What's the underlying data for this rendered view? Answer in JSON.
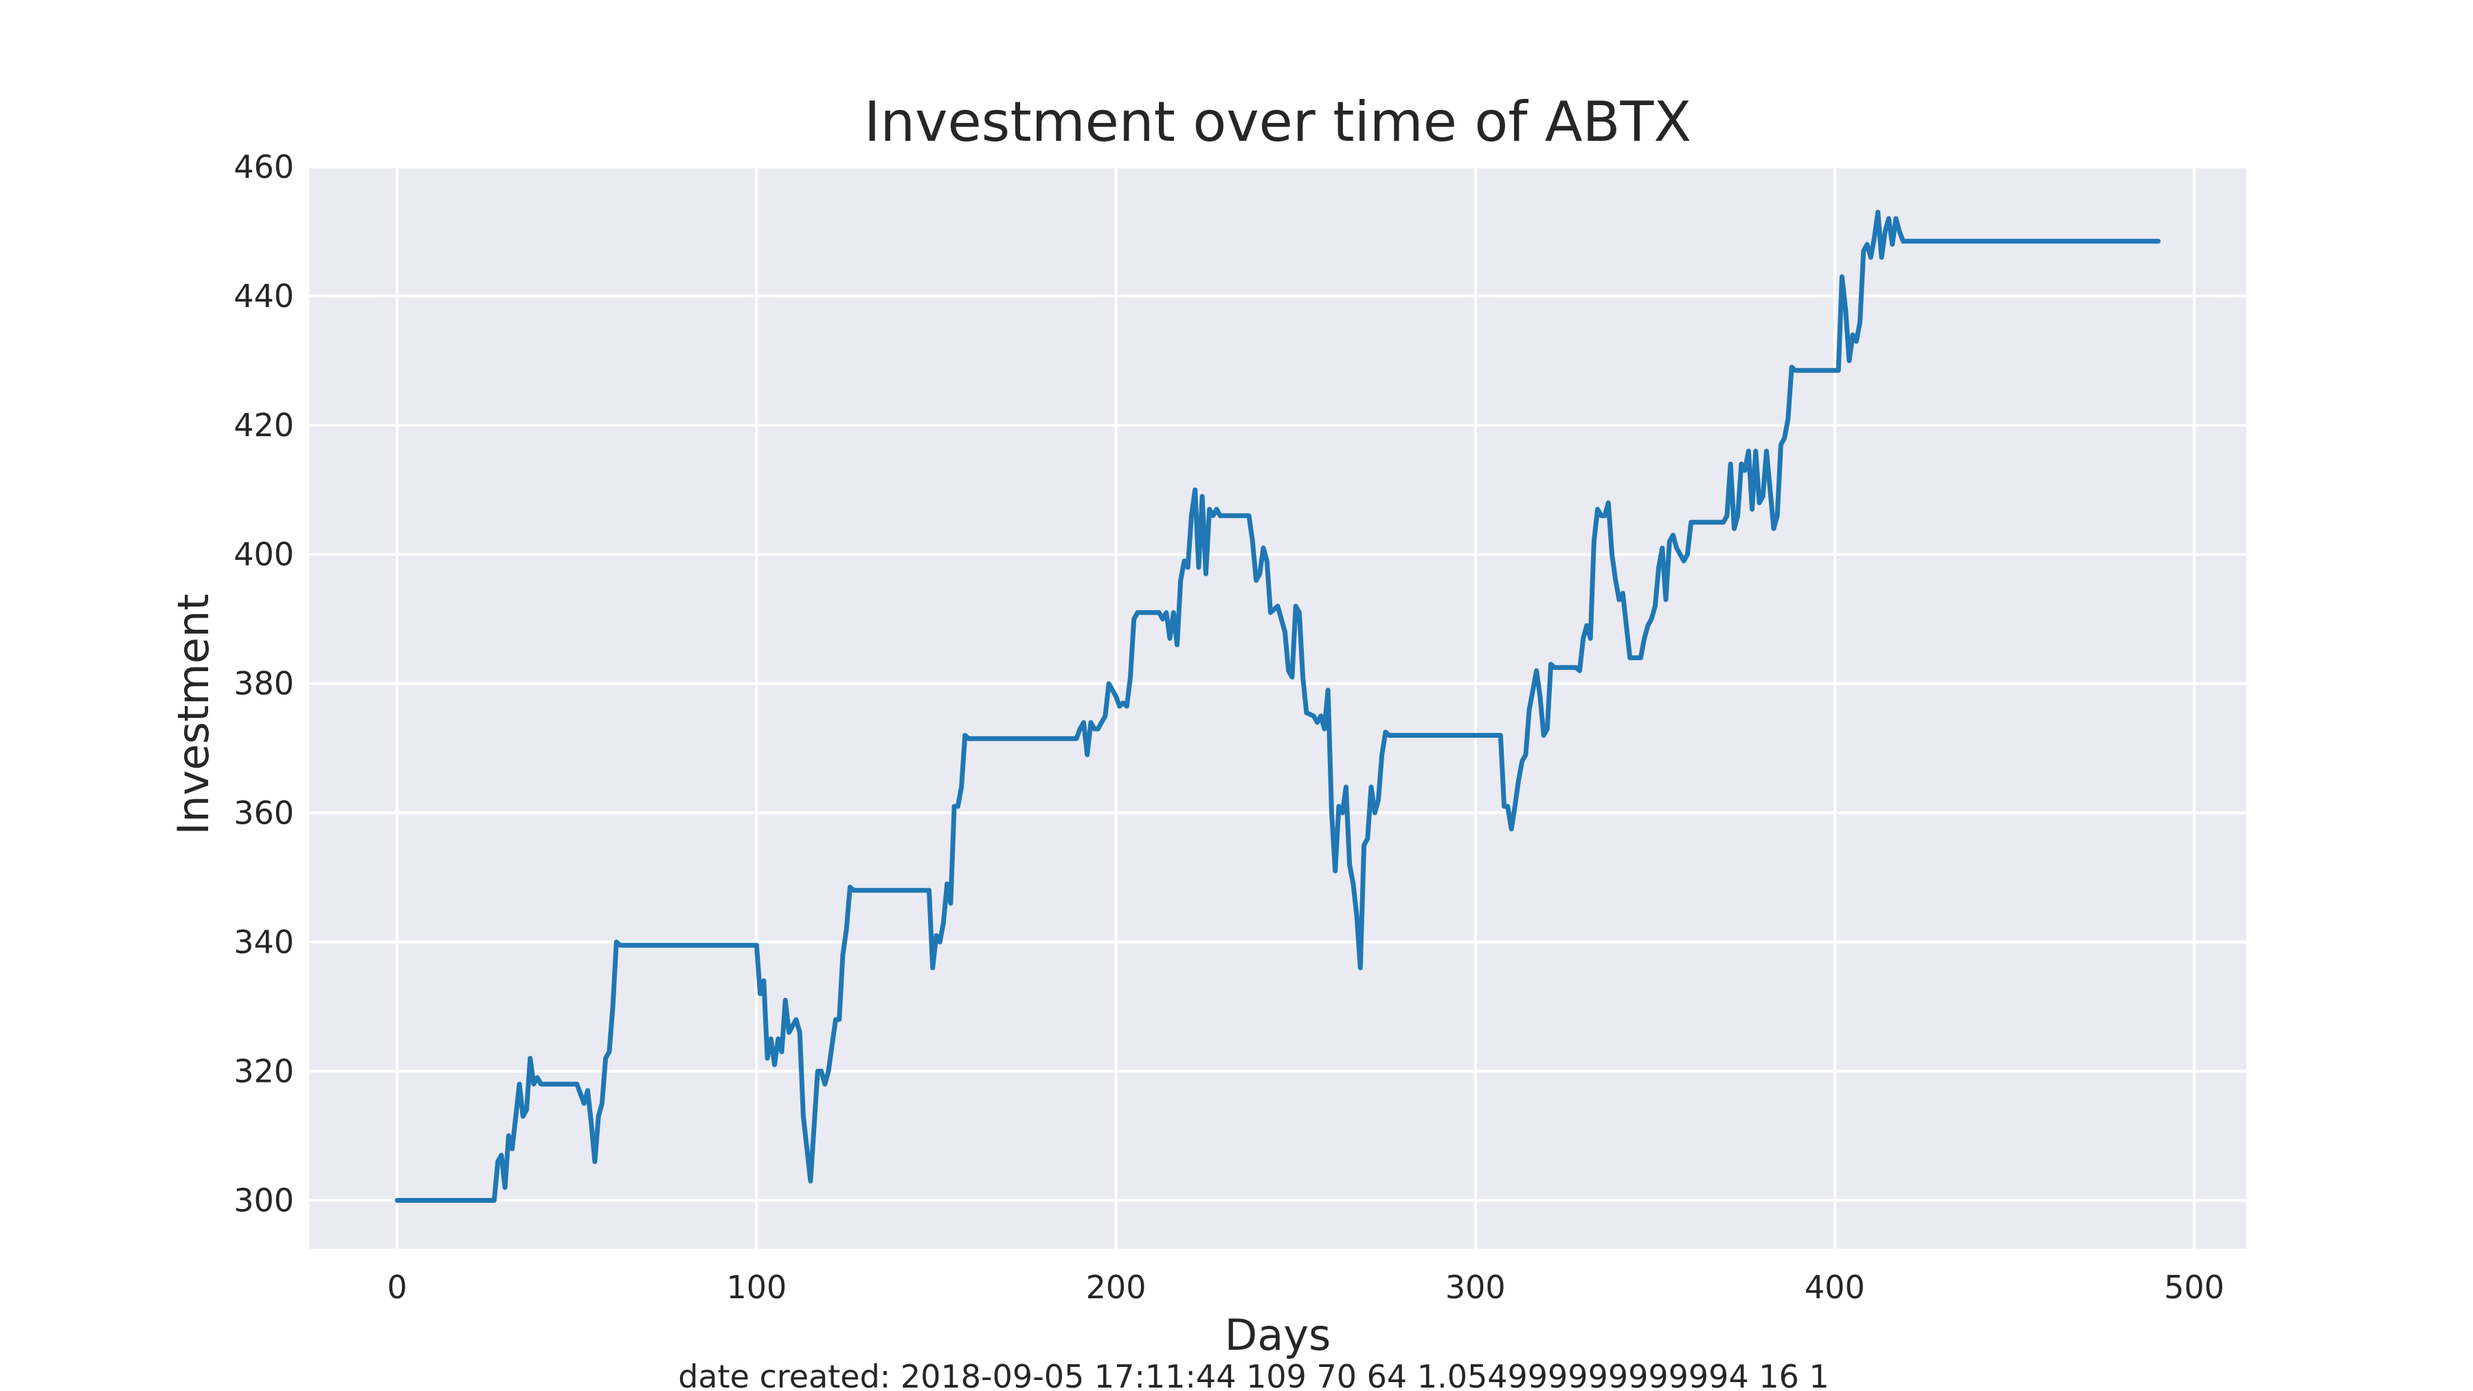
{
  "chart_data": {
    "type": "line",
    "title": "Investment over time of ABTX",
    "xlabel": "Days",
    "ylabel": "Investment",
    "xlim": [
      -24.5,
      514.5
    ],
    "ylim": [
      292.5,
      460
    ],
    "xticks": [
      0,
      100,
      200,
      300,
      400,
      500
    ],
    "yticks": [
      300,
      320,
      340,
      360,
      380,
      400,
      420,
      440,
      460
    ],
    "grid": true,
    "legend": "none",
    "colors": {
      "line": "#1f77b4",
      "plot_bg": "#eaeaf2",
      "grid": "#ffffff",
      "page_bg": "#ffffff"
    },
    "series": [
      {
        "points": [
          [
            0,
            300
          ],
          [
            27,
            300
          ],
          [
            28,
            306
          ],
          [
            29,
            307
          ],
          [
            30,
            302
          ],
          [
            31,
            310
          ],
          [
            32,
            308
          ],
          [
            34,
            318
          ],
          [
            35,
            313
          ],
          [
            36,
            314
          ],
          [
            37,
            322
          ],
          [
            38,
            318
          ],
          [
            39,
            319
          ],
          [
            40,
            318
          ],
          [
            50,
            318
          ],
          [
            52,
            315
          ],
          [
            53,
            317
          ],
          [
            54,
            312
          ],
          [
            55,
            306
          ],
          [
            56,
            313
          ],
          [
            57,
            315
          ],
          [
            58,
            322
          ],
          [
            59,
            323
          ],
          [
            60,
            330
          ],
          [
            61,
            340
          ],
          [
            62,
            339.5
          ],
          [
            100,
            339.5
          ],
          [
            101,
            332
          ],
          [
            102,
            334
          ],
          [
            103,
            322
          ],
          [
            104,
            325
          ],
          [
            105,
            321
          ],
          [
            106,
            325
          ],
          [
            107,
            323
          ],
          [
            108,
            331
          ],
          [
            109,
            326
          ],
          [
            110,
            327
          ],
          [
            111,
            328
          ],
          [
            112,
            326
          ],
          [
            113,
            313
          ],
          [
            115,
            303
          ],
          [
            117,
            320
          ],
          [
            118,
            320
          ],
          [
            119,
            318
          ],
          [
            120,
            320
          ],
          [
            121,
            324
          ],
          [
            122,
            328
          ],
          [
            123,
            328
          ],
          [
            124,
            338
          ],
          [
            125,
            342
          ],
          [
            126,
            348.5
          ],
          [
            127,
            348
          ],
          [
            148,
            348
          ],
          [
            149,
            336
          ],
          [
            150,
            341
          ],
          [
            151,
            340
          ],
          [
            152,
            343
          ],
          [
            153,
            349
          ],
          [
            154,
            346
          ],
          [
            155,
            361
          ],
          [
            156,
            361
          ],
          [
            157,
            364
          ],
          [
            158,
            372
          ],
          [
            159,
            371.5
          ],
          [
            189,
            371.5
          ],
          [
            190,
            373
          ],
          [
            191,
            374
          ],
          [
            192,
            369
          ],
          [
            193,
            374
          ],
          [
            194,
            373
          ],
          [
            195,
            373
          ],
          [
            196,
            374
          ],
          [
            197,
            375
          ],
          [
            198,
            380
          ],
          [
            199,
            379
          ],
          [
            200,
            378
          ],
          [
            201,
            376.5
          ],
          [
            202,
            377
          ],
          [
            203,
            376.5
          ],
          [
            204,
            381
          ],
          [
            205,
            390
          ],
          [
            206,
            391
          ],
          [
            207,
            391
          ],
          [
            212,
            391
          ],
          [
            213,
            390
          ],
          [
            214,
            391
          ],
          [
            215,
            387
          ],
          [
            216,
            391
          ],
          [
            217,
            386
          ],
          [
            218,
            396
          ],
          [
            219,
            399
          ],
          [
            220,
            398
          ],
          [
            221,
            406
          ],
          [
            222,
            410
          ],
          [
            223,
            398
          ],
          [
            224,
            409
          ],
          [
            225,
            397
          ],
          [
            226,
            407
          ],
          [
            227,
            406
          ],
          [
            228,
            407
          ],
          [
            229,
            406
          ],
          [
            237,
            406
          ],
          [
            238,
            402
          ],
          [
            239,
            396
          ],
          [
            240,
            397
          ],
          [
            241,
            401
          ],
          [
            242,
            399
          ],
          [
            243,
            391
          ],
          [
            245,
            392
          ],
          [
            247,
            388
          ],
          [
            248,
            382
          ],
          [
            249,
            381
          ],
          [
            250,
            392
          ],
          [
            251,
            391
          ],
          [
            252,
            381
          ],
          [
            253,
            375.5
          ],
          [
            255,
            375
          ],
          [
            256,
            374
          ],
          [
            257,
            375
          ],
          [
            258,
            373
          ],
          [
            259,
            379
          ],
          [
            260,
            360
          ],
          [
            261,
            351
          ],
          [
            262,
            361
          ],
          [
            263,
            360
          ],
          [
            264,
            364
          ],
          [
            265,
            352
          ],
          [
            266,
            349
          ],
          [
            267,
            344
          ],
          [
            268,
            336
          ],
          [
            269,
            355
          ],
          [
            270,
            356
          ],
          [
            271,
            364
          ],
          [
            272,
            360
          ],
          [
            273,
            362
          ],
          [
            274,
            369
          ],
          [
            275,
            372.5
          ],
          [
            276,
            372
          ],
          [
            307,
            372
          ],
          [
            308,
            361
          ],
          [
            309,
            361
          ],
          [
            310,
            357.5
          ],
          [
            311,
            361
          ],
          [
            312,
            365
          ],
          [
            313,
            368
          ],
          [
            314,
            369
          ],
          [
            315,
            376
          ],
          [
            316,
            379
          ],
          [
            317,
            382
          ],
          [
            318,
            378
          ],
          [
            319,
            372
          ],
          [
            320,
            373
          ],
          [
            321,
            383
          ],
          [
            322,
            382.5
          ],
          [
            328,
            382.5
          ],
          [
            329,
            382
          ],
          [
            330,
            387
          ],
          [
            331,
            389
          ],
          [
            332,
            387
          ],
          [
            333,
            402
          ],
          [
            334,
            407
          ],
          [
            335,
            406
          ],
          [
            336,
            406
          ],
          [
            337,
            408
          ],
          [
            338,
            400
          ],
          [
            339,
            396
          ],
          [
            340,
            393
          ],
          [
            341,
            394
          ],
          [
            342,
            389
          ],
          [
            343,
            384
          ],
          [
            346,
            384
          ],
          [
            347,
            387
          ],
          [
            348,
            389
          ],
          [
            349,
            390
          ],
          [
            350,
            392
          ],
          [
            351,
            398
          ],
          [
            352,
            401
          ],
          [
            353,
            393
          ],
          [
            354,
            402
          ],
          [
            355,
            403
          ],
          [
            356,
            401
          ],
          [
            358,
            399
          ],
          [
            359,
            400
          ],
          [
            360,
            405
          ],
          [
            361,
            405
          ],
          [
            369,
            405
          ],
          [
            370,
            406
          ],
          [
            371,
            414
          ],
          [
            372,
            404
          ],
          [
            373,
            406
          ],
          [
            374,
            414
          ],
          [
            375,
            413
          ],
          [
            376,
            416
          ],
          [
            377,
            407
          ],
          [
            378,
            416
          ],
          [
            379,
            408
          ],
          [
            380,
            409
          ],
          [
            381,
            416
          ],
          [
            382,
            410
          ],
          [
            383,
            404
          ],
          [
            384,
            406
          ],
          [
            385,
            417
          ],
          [
            386,
            418
          ],
          [
            387,
            421
          ],
          [
            388,
            429
          ],
          [
            389,
            428.5
          ],
          [
            401,
            428.5
          ],
          [
            402,
            443
          ],
          [
            403,
            438
          ],
          [
            404,
            430
          ],
          [
            405,
            434
          ],
          [
            406,
            433
          ],
          [
            407,
            436
          ],
          [
            408,
            447
          ],
          [
            409,
            448
          ],
          [
            410,
            446
          ],
          [
            411,
            449
          ],
          [
            412,
            453
          ],
          [
            413,
            446
          ],
          [
            414,
            450
          ],
          [
            415,
            452
          ],
          [
            416,
            448
          ],
          [
            417,
            452
          ],
          [
            418,
            450
          ],
          [
            419,
            448.5
          ],
          [
            490,
            448.5
          ]
        ]
      }
    ]
  },
  "footer": {
    "text": "date created: 2018-09-05 17:11:44 109 70 64 1.054999999999994 16 1"
  }
}
